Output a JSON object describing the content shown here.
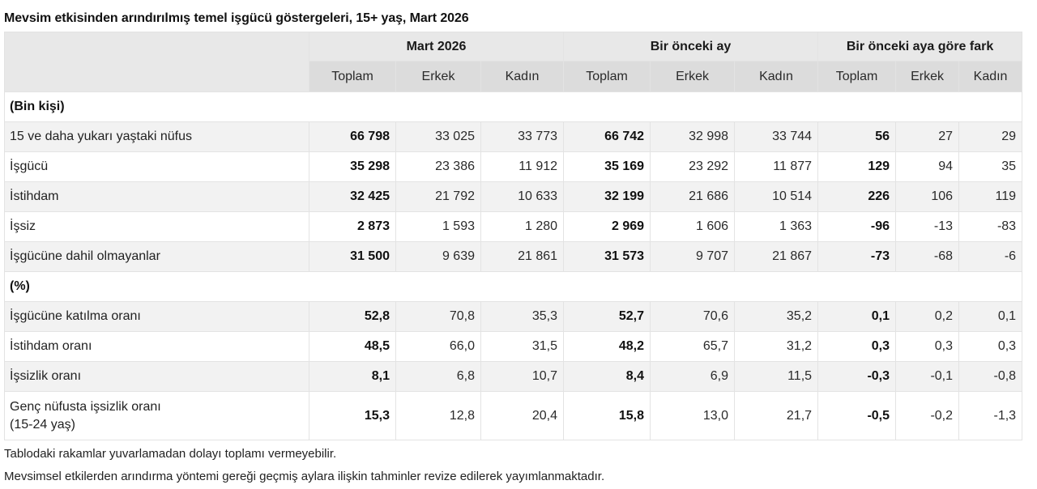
{
  "title": "Mevsim etkisinden arındırılmış temel işgücü göstergeleri, 15+ yaş, Mart 2026",
  "table": {
    "group_headers": [
      "Mart 2026",
      "Bir önceki ay",
      "Bir önceki aya göre fark"
    ],
    "sub_headers": [
      "Toplam",
      "Erkek",
      "Kadın",
      "Toplam",
      "Erkek",
      "Kadın",
      "Toplam",
      "Erkek",
      "Kadın"
    ],
    "sections": [
      {
        "label": "(Bin kişi)",
        "rows": [
          {
            "label": "15 ve daha yukarı yaştaki nüfus",
            "values": [
              "66 798",
              "33 025",
              "33 773",
              "66 742",
              "32 998",
              "33 744",
              "56",
              "27",
              "29"
            ]
          },
          {
            "label": "İşgücü",
            "values": [
              "35 298",
              "23 386",
              "11 912",
              "35 169",
              "23 292",
              "11 877",
              "129",
              "94",
              "35"
            ]
          },
          {
            "label": "İstihdam",
            "values": [
              "32 425",
              "21 792",
              "10 633",
              "32 199",
              "21 686",
              "10 514",
              "226",
              "106",
              "119"
            ]
          },
          {
            "label": "İşsiz",
            "values": [
              "2 873",
              "1 593",
              "1 280",
              "2 969",
              "1 606",
              "1 363",
              "-96",
              "-13",
              "-83"
            ]
          },
          {
            "label": "İşgücüne dahil olmayanlar",
            "values": [
              "31 500",
              "9 639",
              "21 861",
              "31 573",
              "9 707",
              "21 867",
              "-73",
              "-68",
              "-6"
            ]
          }
        ]
      },
      {
        "label": "(%)",
        "rows": [
          {
            "label": "İşgücüne katılma oranı",
            "values": [
              "52,8",
              "70,8",
              "35,3",
              "52,7",
              "70,6",
              "35,2",
              "0,1",
              "0,2",
              "0,1"
            ]
          },
          {
            "label": "İstihdam oranı",
            "values": [
              "48,5",
              "66,0",
              "31,5",
              "48,2",
              "65,7",
              "31,2",
              "0,3",
              "0,3",
              "0,3"
            ]
          },
          {
            "label": "İşsizlik oranı",
            "values": [
              "8,1",
              "6,8",
              "10,7",
              "8,4",
              "6,9",
              "11,5",
              "-0,3",
              "-0,1",
              "-0,8"
            ]
          },
          {
            "label": "Genç nüfusta işsizlik oranı",
            "label_line2": "(15-24 yaş)",
            "values": [
              "15,3",
              "12,8",
              "20,4",
              "15,8",
              "13,0",
              "21,7",
              "-0,5",
              "-0,2",
              "-1,3"
            ]
          }
        ]
      }
    ]
  },
  "notes": [
    "Tablodaki rakamlar yuvarlamadan dolayı toplamı vermeyebilir.",
    "Mevsimsel etkilerden arındırma yöntemi gereği geçmiş aylara ilişkin tahminler revize edilerek yayımlanmaktadır."
  ]
}
